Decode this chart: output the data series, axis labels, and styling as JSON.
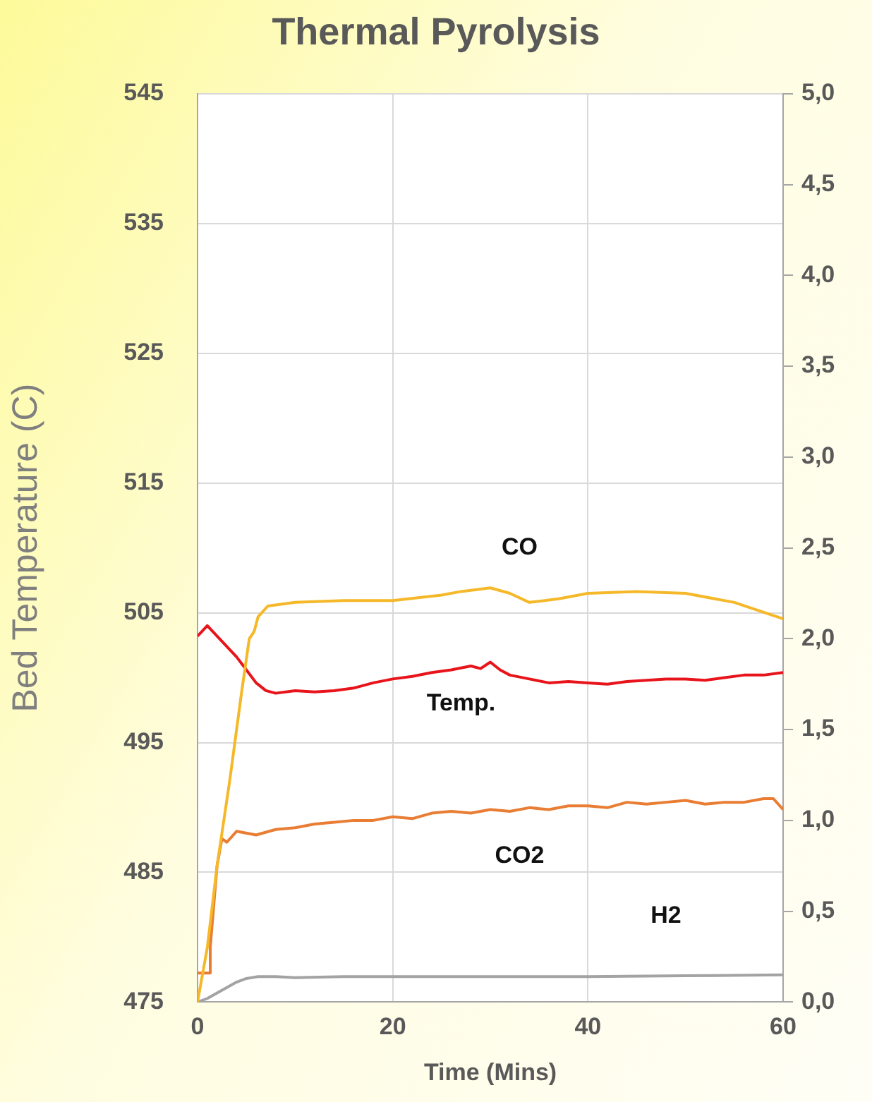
{
  "chart_data": {
    "type": "line",
    "title": "Thermal Pyrolysis",
    "xlabel": "Time (Mins)",
    "ylabel": "Bed Temperature (C)",
    "xlim": [
      0,
      60
    ],
    "xticks": [
      0,
      20,
      40,
      60
    ],
    "ylim": [
      475,
      545
    ],
    "yticks": [
      475,
      485,
      495,
      505,
      515,
      525,
      535,
      545
    ],
    "y2lim": [
      0,
      5
    ],
    "y2ticks": [
      {
        "value": 0,
        "label": "0,0"
      },
      {
        "value": 0.5,
        "label": "0,5"
      },
      {
        "value": 1,
        "label": "1,0"
      },
      {
        "value": 1.5,
        "label": "1,5"
      },
      {
        "value": 2,
        "label": "2,0"
      },
      {
        "value": 2.5,
        "label": "2,5"
      },
      {
        "value": 3,
        "label": "3,0"
      },
      {
        "value": 3.5,
        "label": "3,5"
      },
      {
        "value": 4,
        "label": "4,0"
      },
      {
        "value": 4.5,
        "label": "4,5"
      },
      {
        "value": 5,
        "label": "5,0"
      }
    ],
    "grid": true,
    "legend": false,
    "marker": "none",
    "line_style": "solid",
    "series": [
      {
        "name": "CO",
        "color": "#f5b829",
        "axis": "y2",
        "x": [
          0,
          1,
          2,
          3.3,
          4.5,
          5.3,
          5.8,
          6.2,
          7.2,
          10,
          15,
          20,
          25,
          27,
          30,
          32,
          34,
          37,
          40,
          45,
          50,
          55,
          60
        ],
        "values": [
          0,
          0.3,
          0.75,
          1.22,
          1.7,
          2.0,
          2.04,
          2.12,
          2.18,
          2.2,
          2.21,
          2.21,
          2.24,
          2.26,
          2.28,
          2.25,
          2.2,
          2.22,
          2.25,
          2.26,
          2.25,
          2.2,
          2.11
        ]
      },
      {
        "name": "Temp.",
        "color": "#e8141b",
        "x": [
          0,
          1,
          2,
          3,
          4,
          5,
          6,
          7,
          8,
          10,
          12,
          14,
          16,
          18,
          20,
          22,
          24,
          26,
          28,
          29,
          30,
          31,
          32,
          34,
          36,
          38,
          40,
          42,
          44,
          46,
          48,
          50,
          52,
          54,
          56,
          58,
          60
        ],
        "values": [
          503.2,
          504,
          503.2,
          502.4,
          501.6,
          500.6,
          499.6,
          499,
          498.8,
          499,
          498.9,
          499,
          499.2,
          499.6,
          499.9,
          500.1,
          500.4,
          500.6,
          500.9,
          500.7,
          501.2,
          500.6,
          500.2,
          499.9,
          499.6,
          499.7,
          499.6,
          499.5,
          499.7,
          499.8,
          499.9,
          499.9,
          499.8,
          500,
          500.2,
          500.2,
          500.4
        ]
      },
      {
        "name": "CO2",
        "color": "#e87d33",
        "axis": "y2",
        "x": [
          0,
          1.2,
          1.3,
          2,
          2.5,
          3,
          4,
          6,
          8,
          10,
          12,
          14,
          16,
          18,
          20,
          22,
          24,
          26,
          28,
          30,
          32,
          34,
          36,
          38,
          40,
          42,
          44,
          46,
          48,
          50,
          52,
          54,
          56,
          58,
          59,
          60
        ],
        "values": [
          0.16,
          0.16,
          0.3,
          0.75,
          0.9,
          0.88,
          0.94,
          0.92,
          0.95,
          0.96,
          0.98,
          0.99,
          1.0,
          1.0,
          1.02,
          1.01,
          1.04,
          1.05,
          1.04,
          1.06,
          1.05,
          1.07,
          1.06,
          1.08,
          1.08,
          1.07,
          1.1,
          1.09,
          1.1,
          1.11,
          1.09,
          1.1,
          1.1,
          1.12,
          1.12,
          1.06
        ]
      },
      {
        "name": "H2",
        "color": "#a3a3a3",
        "axis": "y2",
        "x": [
          0,
          1,
          2,
          3,
          4,
          5,
          6.2,
          8,
          10,
          15,
          20,
          30,
          40,
          50,
          60
        ],
        "values": [
          0,
          0.02,
          0.05,
          0.08,
          0.11,
          0.13,
          0.14,
          0.14,
          0.135,
          0.14,
          0.14,
          0.14,
          0.14,
          0.145,
          0.15
        ]
      }
    ]
  }
}
